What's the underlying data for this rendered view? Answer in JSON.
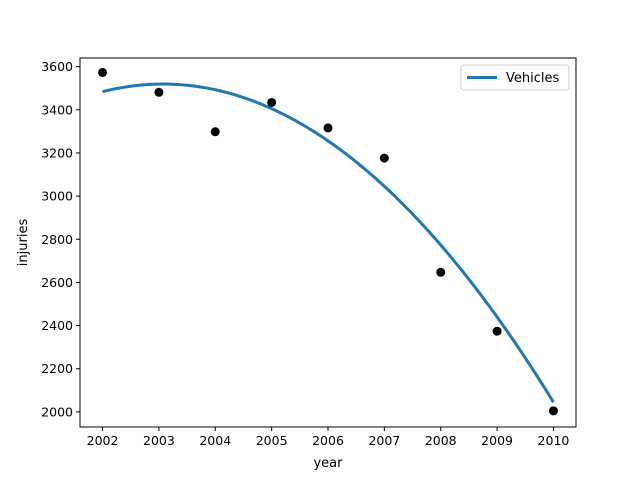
{
  "chart_data": {
    "type": "scatter",
    "title": "",
    "xlabel": "year",
    "ylabel": "injuries",
    "xlim": [
      2001.6,
      2010.4
    ],
    "ylim": [
      1930,
      3640
    ],
    "xticks": [
      2002,
      2003,
      2004,
      2005,
      2006,
      2007,
      2008,
      2009,
      2010
    ],
    "yticks": [
      2000,
      2200,
      2400,
      2600,
      2800,
      3000,
      3200,
      3400,
      3600
    ],
    "grid": false,
    "legend": {
      "placement": "top-right",
      "entries": [
        "Vehicles"
      ]
    },
    "points": {
      "color": "#000000",
      "x": [
        2002,
        2003,
        2004,
        2005,
        2006,
        2007,
        2008,
        2009,
        2010
      ],
      "y": [
        3573,
        3481,
        3298,
        3434,
        3316,
        3176,
        2647,
        2374,
        2005
      ]
    },
    "series": [
      {
        "name": "Vehicles",
        "type": "line",
        "color": "#1f77b4",
        "x": [
          2002,
          2003,
          2004,
          2005,
          2006,
          2007,
          2008,
          2009,
          2010
        ],
        "y": [
          3484,
          3519,
          3493,
          3405,
          3256,
          3046,
          2773,
          2440,
          2045
        ]
      }
    ]
  }
}
